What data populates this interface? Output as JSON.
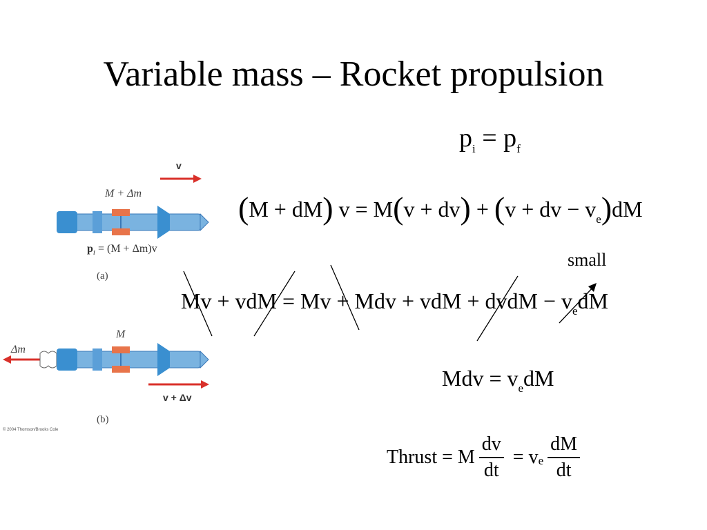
{
  "slide": {
    "title": "Variable mass – Rocket propulsion",
    "eq1": {
      "lhs": "p",
      "lhs_sub": "i",
      "op": " = ",
      "rhs": "p",
      "rhs_sub": "f"
    },
    "eq2": {
      "part1": "(",
      "part2": "M + dM",
      "part3": ")",
      "part4": " v = M",
      "part5": "(",
      "part6": "v + dv",
      "part7": ")",
      "part8": " + ",
      "part9": "(",
      "part10": "v + dv − v",
      "sub": "e",
      "part11": ")",
      "part12": "dM"
    },
    "annotation": "small",
    "eq3": {
      "text": "Mv + vdM = Mv + Mdv + vdM + dvdM − v",
      "sub": "e",
      "tail": "dM"
    },
    "eq4": {
      "text": "Mdv = v",
      "sub": "e",
      "tail": "dM"
    },
    "eq5": {
      "lead": "Thrust = M",
      "frac1_num": "dv",
      "frac1_den": "dt",
      "mid": " = v",
      "sub": "e",
      "frac2_num": "dM",
      "frac2_den": "dt"
    }
  },
  "figure": {
    "a": {
      "velocity": "v",
      "mass": "M + Δm",
      "momentum_p": "p",
      "momentum_sub": "i",
      "momentum_rest": " = (M + Δm)v",
      "panel": "(a)"
    },
    "b": {
      "exhaust_mass": "Δm",
      "mass": "M",
      "velocity": "v + Δv",
      "panel": "(b)"
    },
    "copyright": "© 2004 Thomson/Brooks Cole"
  },
  "colors": {
    "rocket_body": "#7ab3e0",
    "rocket_dark": "#3a78b8",
    "clamp": "#e8744a",
    "arrow": "#d9302a"
  }
}
